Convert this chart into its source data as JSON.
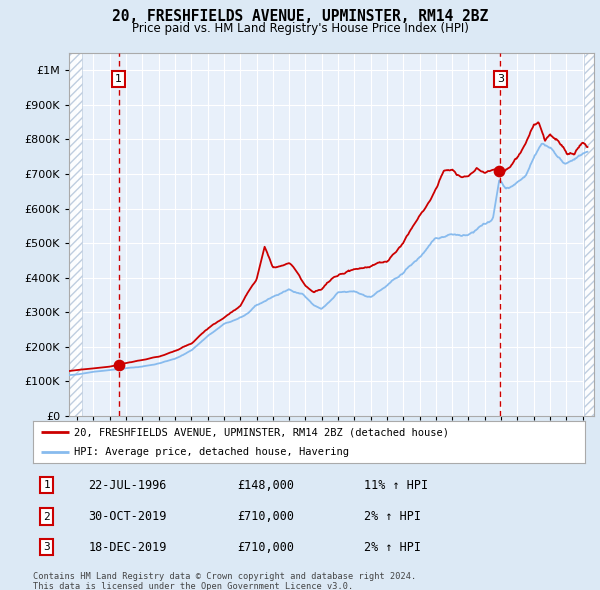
{
  "title": "20, FRESHFIELDS AVENUE, UPMINSTER, RM14 2BZ",
  "subtitle": "Price paid vs. HM Land Registry's House Price Index (HPI)",
  "legend_line1": "20, FRESHFIELDS AVENUE, UPMINSTER, RM14 2BZ (detached house)",
  "legend_line2": "HPI: Average price, detached house, Havering",
  "footer1": "Contains HM Land Registry data © Crown copyright and database right 2024.",
  "footer2": "This data is licensed under the Open Government Licence v3.0.",
  "sales": [
    {
      "num": 1,
      "date": "22-JUL-1996",
      "price": 148000,
      "hpi_pct": "11% ↑ HPI"
    },
    {
      "num": 2,
      "date": "30-OCT-2019",
      "price": 710000,
      "hpi_pct": "2% ↑ HPI"
    },
    {
      "num": 3,
      "date": "18-DEC-2019",
      "price": 710000,
      "hpi_pct": "2% ↑ HPI"
    }
  ],
  "vline1_date": 1996.55,
  "vline3_date": 2019.96,
  "marker_date1": 1996.55,
  "marker_date23": 2019.89,
  "marker_price1": 148000,
  "marker_price23": 710000,
  "ylim": [
    0,
    1050000
  ],
  "xlim_start": 1993.5,
  "xlim_end": 2025.7,
  "hatch_end": 1994.3,
  "hatch_right_start": 2025.1,
  "bg_color": "#dce9f5",
  "plot_bg": "#dce9f5",
  "chart_bg": "#e8f0fa",
  "grid_color": "#c8d8ec",
  "red_color": "#cc0000",
  "blue_color": "#88bbee",
  "vline_color": "#cc0000",
  "hatch_color": "#b8c8dc",
  "hpi_anchors_x": [
    1993.5,
    1994.0,
    1995.0,
    1996.0,
    1997.0,
    1998.0,
    1999.0,
    2000.0,
    2001.0,
    2002.0,
    2003.0,
    2004.0,
    2004.5,
    2005.0,
    2006.0,
    2007.0,
    2007.8,
    2008.5,
    2009.0,
    2009.5,
    2010.0,
    2011.0,
    2012.0,
    2013.0,
    2014.0,
    2015.0,
    2016.0,
    2017.0,
    2017.5,
    2018.0,
    2019.0,
    2019.5,
    2019.9,
    2020.3,
    2020.8,
    2021.5,
    2022.0,
    2022.5,
    2023.0,
    2023.5,
    2024.0,
    2024.5,
    2025.0,
    2025.3
  ],
  "hpi_anchors_y": [
    118000,
    120000,
    128000,
    133000,
    138000,
    143000,
    152000,
    165000,
    190000,
    230000,
    265000,
    285000,
    295000,
    320000,
    345000,
    365000,
    355000,
    320000,
    310000,
    330000,
    355000,
    360000,
    345000,
    375000,
    415000,
    460000,
    510000,
    530000,
    525000,
    525000,
    555000,
    570000,
    685000,
    660000,
    670000,
    700000,
    750000,
    790000,
    775000,
    750000,
    730000,
    740000,
    760000,
    765000
  ],
  "prop_anchors_x": [
    1993.5,
    1994.0,
    1995.0,
    1996.0,
    1996.55,
    1997.0,
    1998.0,
    1999.0,
    2000.0,
    2001.0,
    2002.0,
    2003.0,
    2004.0,
    2004.5,
    2005.0,
    2005.5,
    2006.0,
    2007.0,
    2007.5,
    2008.0,
    2008.5,
    2009.0,
    2009.5,
    2010.0,
    2011.0,
    2012.0,
    2013.0,
    2014.0,
    2015.0,
    2016.0,
    2016.5,
    2017.0,
    2017.5,
    2018.0,
    2018.5,
    2019.0,
    2019.5,
    2019.89,
    2020.0,
    2020.5,
    2021.0,
    2021.5,
    2022.0,
    2022.3,
    2022.7,
    2023.0,
    2023.5,
    2024.0,
    2024.5,
    2025.0,
    2025.3
  ],
  "prop_anchors_y": [
    130000,
    133000,
    138000,
    143000,
    148000,
    152000,
    162000,
    172000,
    188000,
    210000,
    250000,
    285000,
    320000,
    360000,
    395000,
    490000,
    430000,
    445000,
    415000,
    380000,
    360000,
    365000,
    390000,
    410000,
    425000,
    435000,
    445000,
    500000,
    580000,
    650000,
    710000,
    710000,
    700000,
    690000,
    720000,
    700000,
    710000,
    710000,
    700000,
    720000,
    750000,
    790000,
    840000,
    850000,
    800000,
    820000,
    795000,
    760000,
    760000,
    785000,
    775000
  ]
}
